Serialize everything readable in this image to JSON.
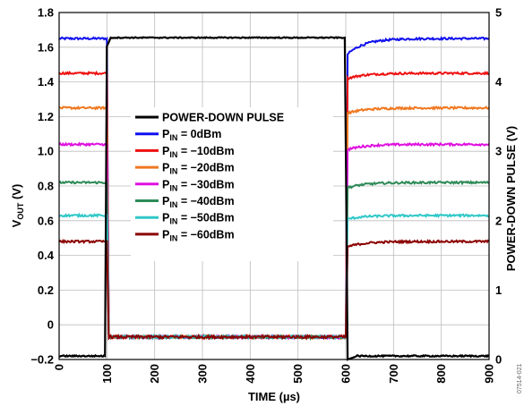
{
  "chart_data": {
    "type": "line",
    "xlabel": "TIME (µs)",
    "ylabel_main": "V",
    "ylabel_sub": "OUT",
    "ylabel_unit": " (V)",
    "y2label": "POWER-DOWN PULSE (V)",
    "figure_code": "07514-021",
    "xlim": [
      0,
      900
    ],
    "ylim": [
      -0.2,
      1.8
    ],
    "y2lim": [
      0,
      5
    ],
    "xticks": [
      "0",
      "100",
      "200",
      "300",
      "400",
      "500",
      "600",
      "700",
      "800",
      "900"
    ],
    "yticks": [
      "−0.2",
      "0",
      "0.2",
      "0.4",
      "0.6",
      "0.8",
      "1.0",
      "1.2",
      "1.4",
      "1.6",
      "1.8"
    ],
    "y2ticks": [
      "0",
      "1",
      "2",
      "3",
      "4",
      "5"
    ],
    "grid": true,
    "legend_position": "center-left",
    "pulse": {
      "name": "POWER-DOWN PULSE",
      "color": "#000000",
      "low": -0.18,
      "high": 1.655,
      "rise_x": 100,
      "fall_x": 600
    },
    "series": [
      {
        "name_main": "P",
        "name_sub": "IN",
        "name_rest": " = 0dBm",
        "color": "#1010ee",
        "on_level": 1.65,
        "recovery_start": 1.56,
        "off_level": -0.07
      },
      {
        "name_main": "P",
        "name_sub": "IN",
        "name_rest": " = −10dBm",
        "color": "#ee1010",
        "on_level": 1.45,
        "recovery_start": 1.42,
        "off_level": -0.07
      },
      {
        "name_main": "P",
        "name_sub": "IN",
        "name_rest": " = −20dBm",
        "color": "#f07820",
        "on_level": 1.25,
        "recovery_start": 1.22,
        "off_level": -0.07
      },
      {
        "name_main": "P",
        "name_sub": "IN",
        "name_rest": " = −30dBm",
        "color": "#e010e0",
        "on_level": 1.04,
        "recovery_start": 1.01,
        "off_level": -0.07
      },
      {
        "name_main": "P",
        "name_sub": "IN",
        "name_rest": " = −40dBm",
        "color": "#2e8b57",
        "on_level": 0.82,
        "recovery_start": 0.79,
        "off_level": -0.07
      },
      {
        "name_main": "P",
        "name_sub": "IN",
        "name_rest": " = −50dBm",
        "color": "#30c8c8",
        "on_level": 0.63,
        "recovery_start": 0.61,
        "off_level": -0.07
      },
      {
        "name_main": "P",
        "name_sub": "IN",
        "name_rest": " = −60dBm",
        "color": "#8b0000",
        "on_level": 0.48,
        "recovery_start": 0.45,
        "off_level": -0.07
      }
    ]
  }
}
